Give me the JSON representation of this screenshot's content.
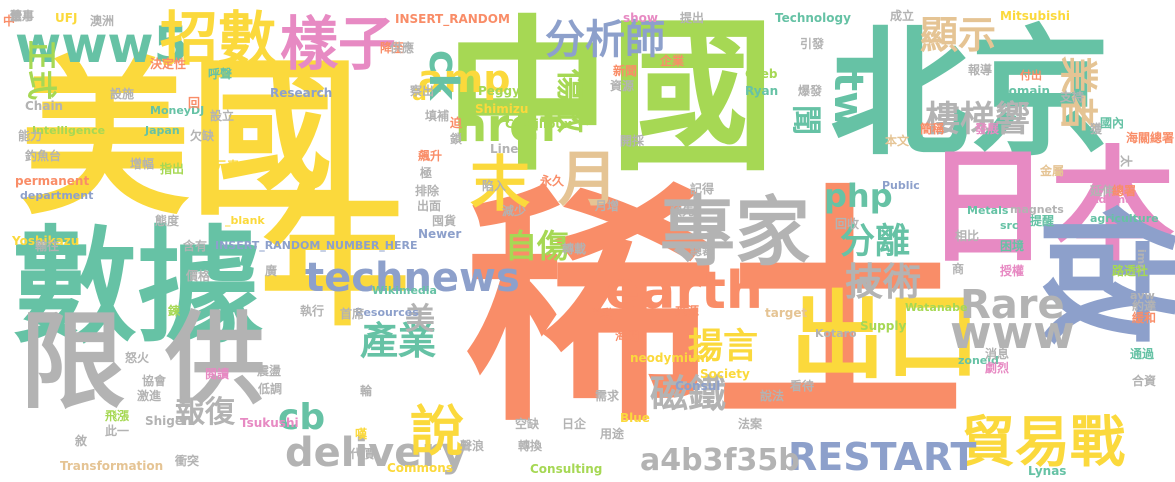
{
  "colors": {
    "orange": "#f98d68",
    "yellow": "#fbd93c",
    "green": "#a6d854",
    "teal": "#66c2a5",
    "pink": "#e78ac3",
    "blue": "#8da0cb",
    "tan": "#e5c494",
    "gray": "#b3b3b3"
  },
  "words": [
    {
      "text": "稀土",
      "color": "orange"
    },
    {
      "text": "中國",
      "color": "green"
    },
    {
      "text": "美國",
      "color": "yellow"
    },
    {
      "text": "北京",
      "color": "teal"
    },
    {
      "text": "數據",
      "color": "teal"
    },
    {
      "text": "年",
      "color": "yellow"
    },
    {
      "text": "日本",
      "color": "pink"
    },
    {
      "text": "做",
      "color": "blue"
    },
    {
      "text": "限",
      "color": "gray"
    },
    {
      "text": "供",
      "color": "gray"
    },
    {
      "text": "專家",
      "color": "gray"
    },
    {
      "text": "www5",
      "color": "teal"
    },
    {
      "text": "招數",
      "color": "yellow"
    },
    {
      "text": "樣子",
      "color": "pink"
    },
    {
      "text": "出口",
      "color": "yellow"
    },
    {
      "text": "貿易戰",
      "color": "yellow"
    },
    {
      "text": "earth",
      "color": "orange"
    },
    {
      "text": "technews",
      "color": "blue"
    },
    {
      "text": "delivery",
      "color": "gray"
    },
    {
      "text": "RESTART",
      "color": "blue"
    },
    {
      "text": "www",
      "color": "gray"
    },
    {
      "text": "Rare",
      "color": "gray"
    },
    {
      "text": "a4b3f35b",
      "color": "gray"
    },
    {
      "text": "說",
      "color": "yellow"
    },
    {
      "text": "月",
      "color": "tan"
    },
    {
      "text": "末",
      "color": "yellow"
    },
    {
      "text": "href",
      "color": "green"
    },
    {
      "text": "amp",
      "color": "yellow"
    },
    {
      "text": "ck",
      "color": "teal"
    },
    {
      "text": "php",
      "color": "teal"
    },
    {
      "text": "cb",
      "color": "teal"
    },
    {
      "text": "tw",
      "color": "teal"
    },
    {
      "text": "n",
      "color": "gray"
    },
    {
      "text": "a",
      "color": "yellow"
    },
    {
      "text": "分析師",
      "color": "blue"
    },
    {
      "text": "技術",
      "color": "gray"
    },
    {
      "text": "顯示",
      "color": "tan"
    },
    {
      "text": "業者",
      "color": "tan"
    },
    {
      "text": "產業",
      "color": "teal"
    },
    {
      "text": "磁鐵",
      "color": "gray"
    },
    {
      "text": "揚言",
      "color": "yellow"
    },
    {
      "text": "分離",
      "color": "teal"
    },
    {
      "text": "樓梯響",
      "color": "gray"
    },
    {
      "text": "自傷",
      "color": "green"
    },
    {
      "text": "傷敵",
      "color": "green"
    },
    {
      "text": "報復",
      "color": "gray"
    },
    {
      "text": "聞",
      "color": "teal"
    },
    {
      "text": "美",
      "color": "gray"
    },
    {
      "text": "正式",
      "color": "green"
    },
    {
      "text": "Research",
      "color": "blue"
    },
    {
      "text": "Intelligence",
      "color": "green"
    },
    {
      "text": "MoneyDJ",
      "color": "teal"
    },
    {
      "text": "Japan",
      "color": "teal"
    },
    {
      "text": "UFJ",
      "color": "yellow"
    },
    {
      "text": "INSERT_RANDOM",
      "color": "orange"
    },
    {
      "text": "INSERT_RANDOM_NUMBER_HERE",
      "color": "blue"
    },
    {
      "text": "_blank",
      "color": "yellow"
    },
    {
      "text": "Peggy",
      "color": "green"
    },
    {
      "text": "Shimizu",
      "color": "yellow"
    },
    {
      "text": "Castilloux",
      "color": "green"
    },
    {
      "text": "Line",
      "color": "gray"
    },
    {
      "text": "show",
      "color": "pink"
    },
    {
      "text": "Technology",
      "color": "teal"
    },
    {
      "text": "Mitsubishi",
      "color": "yellow"
    },
    {
      "text": "Greb",
      "color": "green"
    },
    {
      "text": "Ryan",
      "color": "teal"
    },
    {
      "text": "domain",
      "color": "teal"
    },
    {
      "text": "Adamas",
      "color": "pink"
    },
    {
      "text": "agriculture",
      "color": "teal"
    },
    {
      "text": "Newer",
      "color": "blue"
    },
    {
      "text": "magnets",
      "color": "gray"
    },
    {
      "text": "Metals",
      "color": "teal"
    },
    {
      "text": "Public",
      "color": "blue"
    },
    {
      "text": "src",
      "color": "teal"
    },
    {
      "text": "img",
      "color": "gray"
    },
    {
      "text": "Watanabe",
      "color": "green"
    },
    {
      "text": "avw",
      "color": "gray"
    },
    {
      "text": "Wikimedia",
      "color": "teal"
    },
    {
      "text": "Resources",
      "color": "blue"
    },
    {
      "text": "Supply",
      "color": "green"
    },
    {
      "text": "target",
      "color": "tan"
    },
    {
      "text": "Kotaro",
      "color": "gray"
    },
    {
      "text": "neodymium",
      "color": "yellow"
    },
    {
      "text": "Society",
      "color": "yellow"
    },
    {
      "text": "zoneid",
      "color": "teal"
    },
    {
      "text": "Consul",
      "color": "blue"
    },
    {
      "text": "Blue",
      "color": "yellow"
    },
    {
      "text": "Consulting",
      "color": "green"
    },
    {
      "text": "Commons",
      "color": "yellow"
    },
    {
      "text": "Lynas",
      "color": "teal"
    },
    {
      "text": "Transformation",
      "color": "tan"
    },
    {
      "text": "Tsukushi",
      "color": "pink"
    },
    {
      "text": "Shigen",
      "color": "gray"
    },
    {
      "text": "Yoshikazu",
      "color": "yellow"
    },
    {
      "text": "permanent",
      "color": "orange"
    },
    {
      "text": "department",
      "color": "blue"
    },
    {
      "text": "Chain",
      "color": "gray"
    },
    {
      "text": "嘆",
      "color": "yellow"
    },
    {
      "text": "中",
      "color": "orange"
    },
    {
      "text": "澳洲",
      "color": "gray"
    },
    {
      "text": "降至",
      "color": "orange"
    },
    {
      "text": "供應",
      "color": "gray"
    },
    {
      "text": "決定性",
      "color": "orange"
    },
    {
      "text": "呼聲",
      "color": "teal"
    },
    {
      "text": "回",
      "color": "orange"
    },
    {
      "text": "迫",
      "color": "orange"
    },
    {
      "text": "新聞",
      "color": "orange"
    },
    {
      "text": "資源",
      "color": "gray"
    },
    {
      "text": "企業",
      "color": "orange"
    },
    {
      "text": "爆發",
      "color": "gray"
    },
    {
      "text": "報導",
      "color": "gray"
    },
    {
      "text": "付出",
      "color": "orange"
    },
    {
      "text": "支持",
      "color": "gray"
    },
    {
      "text": "國內",
      "color": "teal"
    },
    {
      "text": "引發",
      "color": "gray"
    },
    {
      "text": "成立",
      "color": "gray"
    },
    {
      "text": "提出",
      "color": "gray"
    },
    {
      "text": "獲",
      "color": "gray"
    },
    {
      "text": "海關總署",
      "color": "orange"
    },
    {
      "text": "太",
      "color": "gray"
    },
    {
      "text": "發展",
      "color": "pink"
    },
    {
      "text": "簡稱",
      "color": "orange"
    },
    {
      "text": "本文",
      "color": "tan"
    },
    {
      "text": "金屬",
      "color": "tan"
    },
    {
      "text": "延伸",
      "color": "gray"
    },
    {
      "text": "總署",
      "color": "orange"
    },
    {
      "text": "提醒",
      "color": "teal"
    },
    {
      "text": "相比",
      "color": "gray"
    },
    {
      "text": "困境",
      "color": "teal"
    },
    {
      "text": "回收",
      "color": "gray"
    },
    {
      "text": "商",
      "color": "gray"
    },
    {
      "text": "授權",
      "color": "pink"
    },
    {
      "text": "路透社",
      "color": "green"
    },
    {
      "text": "約達",
      "color": "gray"
    },
    {
      "text": "緩和",
      "color": "orange"
    },
    {
      "text": "通過",
      "color": "teal"
    },
    {
      "text": "合資",
      "color": "gray"
    },
    {
      "text": "消息",
      "color": "gray"
    },
    {
      "text": "劇烈",
      "color": "pink"
    },
    {
      "text": "說法",
      "color": "gray"
    },
    {
      "text": "法案",
      "color": "gray"
    },
    {
      "text": "需求",
      "color": "gray"
    },
    {
      "text": "海關",
      "color": "orange"
    },
    {
      "text": "來源",
      "color": "orange"
    },
    {
      "text": "舉動",
      "color": "orange"
    },
    {
      "text": "空缺",
      "color": "gray"
    },
    {
      "text": "日企",
      "color": "gray"
    },
    {
      "text": "用途",
      "color": "gray"
    },
    {
      "text": "轉換",
      "color": "gray"
    },
    {
      "text": "代價",
      "color": "gray"
    },
    {
      "text": "聲浪",
      "color": "gray"
    },
    {
      "text": "飛漲",
      "color": "green"
    },
    {
      "text": "此一",
      "color": "gray"
    },
    {
      "text": "敘",
      "color": "gray"
    },
    {
      "text": "衝突",
      "color": "gray"
    },
    {
      "text": "震盪",
      "color": "gray"
    },
    {
      "text": "低調",
      "color": "gray"
    },
    {
      "text": "執行",
      "color": "gray"
    },
    {
      "text": "首席",
      "color": "gray"
    },
    {
      "text": "輪",
      "color": "gray"
    },
    {
      "text": "激進",
      "color": "gray"
    },
    {
      "text": "協會",
      "color": "gray"
    },
    {
      "text": "怒火",
      "color": "gray"
    },
    {
      "text": "閱讀",
      "color": "pink"
    },
    {
      "text": "鍊",
      "color": "green"
    },
    {
      "text": "價格",
      "color": "gray"
    },
    {
      "text": "廣",
      "color": "gray"
    },
    {
      "text": "含有",
      "color": "gray"
    },
    {
      "text": "態度",
      "color": "gray"
    },
    {
      "text": "輸往",
      "color": "gray"
    },
    {
      "text": "釣魚台",
      "color": "gray"
    },
    {
      "text": "增幅",
      "color": "gray"
    },
    {
      "text": "指出",
      "color": "green"
    },
    {
      "text": "元素",
      "color": "yellow"
    },
    {
      "text": "能力",
      "color": "gray"
    },
    {
      "text": "欠缺",
      "color": "gray"
    },
    {
      "text": "設立",
      "color": "gray"
    },
    {
      "text": "設施",
      "color": "gray"
    },
    {
      "text": "察出",
      "color": "gray"
    },
    {
      "text": "填補",
      "color": "gray"
    },
    {
      "text": "鎖",
      "color": "gray"
    },
    {
      "text": "飆升",
      "color": "orange"
    },
    {
      "text": "極",
      "color": "gray"
    },
    {
      "text": "排除",
      "color": "gray"
    },
    {
      "text": "出面",
      "color": "gray"
    },
    {
      "text": "囤貨",
      "color": "gray"
    },
    {
      "text": "陷入",
      "color": "gray"
    },
    {
      "text": "減少",
      "color": "gray"
    },
    {
      "text": "永久",
      "color": "orange"
    },
    {
      "text": "轉載",
      "color": "gray"
    },
    {
      "text": "月增",
      "color": "gray"
    },
    {
      "text": "開採",
      "color": "gray"
    },
    {
      "text": "預先",
      "color": "gray"
    },
    {
      "text": "總裁",
      "color": "gray"
    },
    {
      "text": "記得",
      "color": "gray"
    },
    {
      "text": "看待",
      "color": "gray"
    },
    {
      "text": "董事",
      "color": "gray"
    },
    {
      "text": "份",
      "color": "gray"
    },
    {
      "text": "法",
      "color": "gray"
    },
    {
      "text": "華月",
      "color": "gray"
    }
  ]
}
